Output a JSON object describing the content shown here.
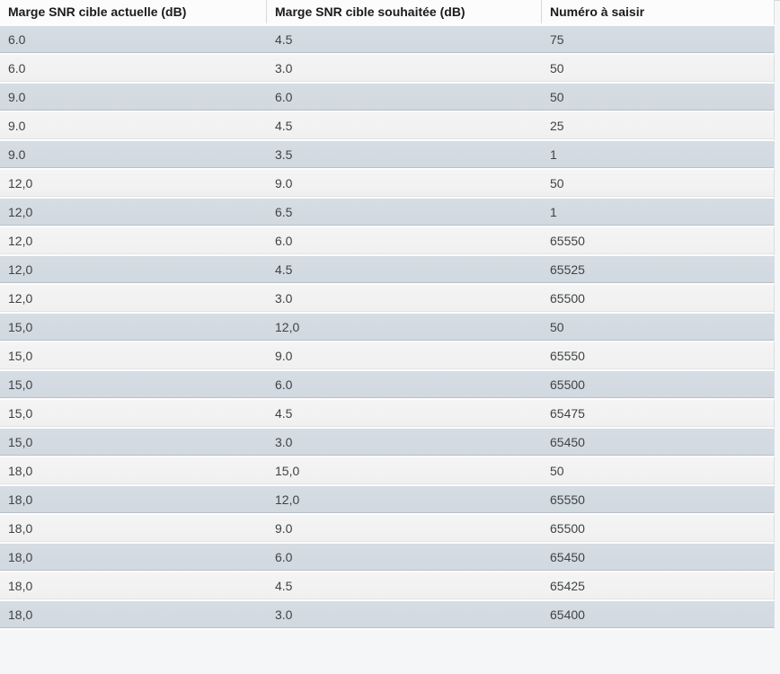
{
  "table": {
    "columns": [
      {
        "id": "current-margin",
        "label": "Marge SNR cible actuelle (dB)"
      },
      {
        "id": "desired-margin",
        "label": "Marge SNR cible souhaitée (dB)"
      },
      {
        "id": "number-to-enter",
        "label": "Numéro à saisir"
      }
    ],
    "rows": [
      [
        "6.0",
        "4.5",
        "75"
      ],
      [
        "6.0",
        "3.0",
        "50"
      ],
      [
        "9.0",
        "6.0",
        "50"
      ],
      [
        "9.0",
        "4.5",
        "25"
      ],
      [
        "9.0",
        "3.5",
        "1"
      ],
      [
        "12,0",
        "9.0",
        "50"
      ],
      [
        "12,0",
        "6.5",
        "1"
      ],
      [
        "12,0",
        "6.0",
        "65550"
      ],
      [
        "12,0",
        "4.5",
        "65525"
      ],
      [
        "12,0",
        "3.0",
        "65500"
      ],
      [
        "15,0",
        "12,0",
        "50"
      ],
      [
        "15,0",
        "9.0",
        "65550"
      ],
      [
        "15,0",
        "6.0",
        "65500"
      ],
      [
        "15,0",
        "4.5",
        "65475"
      ],
      [
        "15,0",
        "3.0",
        "65450"
      ],
      [
        "18,0",
        "15,0",
        "50"
      ],
      [
        "18,0",
        "12,0",
        "65550"
      ],
      [
        "18,0",
        "9.0",
        "65500"
      ],
      [
        "18,0",
        "6.0",
        "65450"
      ],
      [
        "18,0",
        "4.5",
        "65425"
      ],
      [
        "18,0",
        "3.0",
        "65400"
      ]
    ]
  },
  "colors": {
    "page_bg": "#f4f6f8",
    "header_bg": "#fcfcfc",
    "header_text": "#1b1b1b",
    "header_divider": "#d8d8d8",
    "row_alt_bg": "#d1d9e0",
    "row_base_bg": "#f0f0f0",
    "row_gap": "#fcfcfd",
    "body_text": "#3f4345"
  }
}
